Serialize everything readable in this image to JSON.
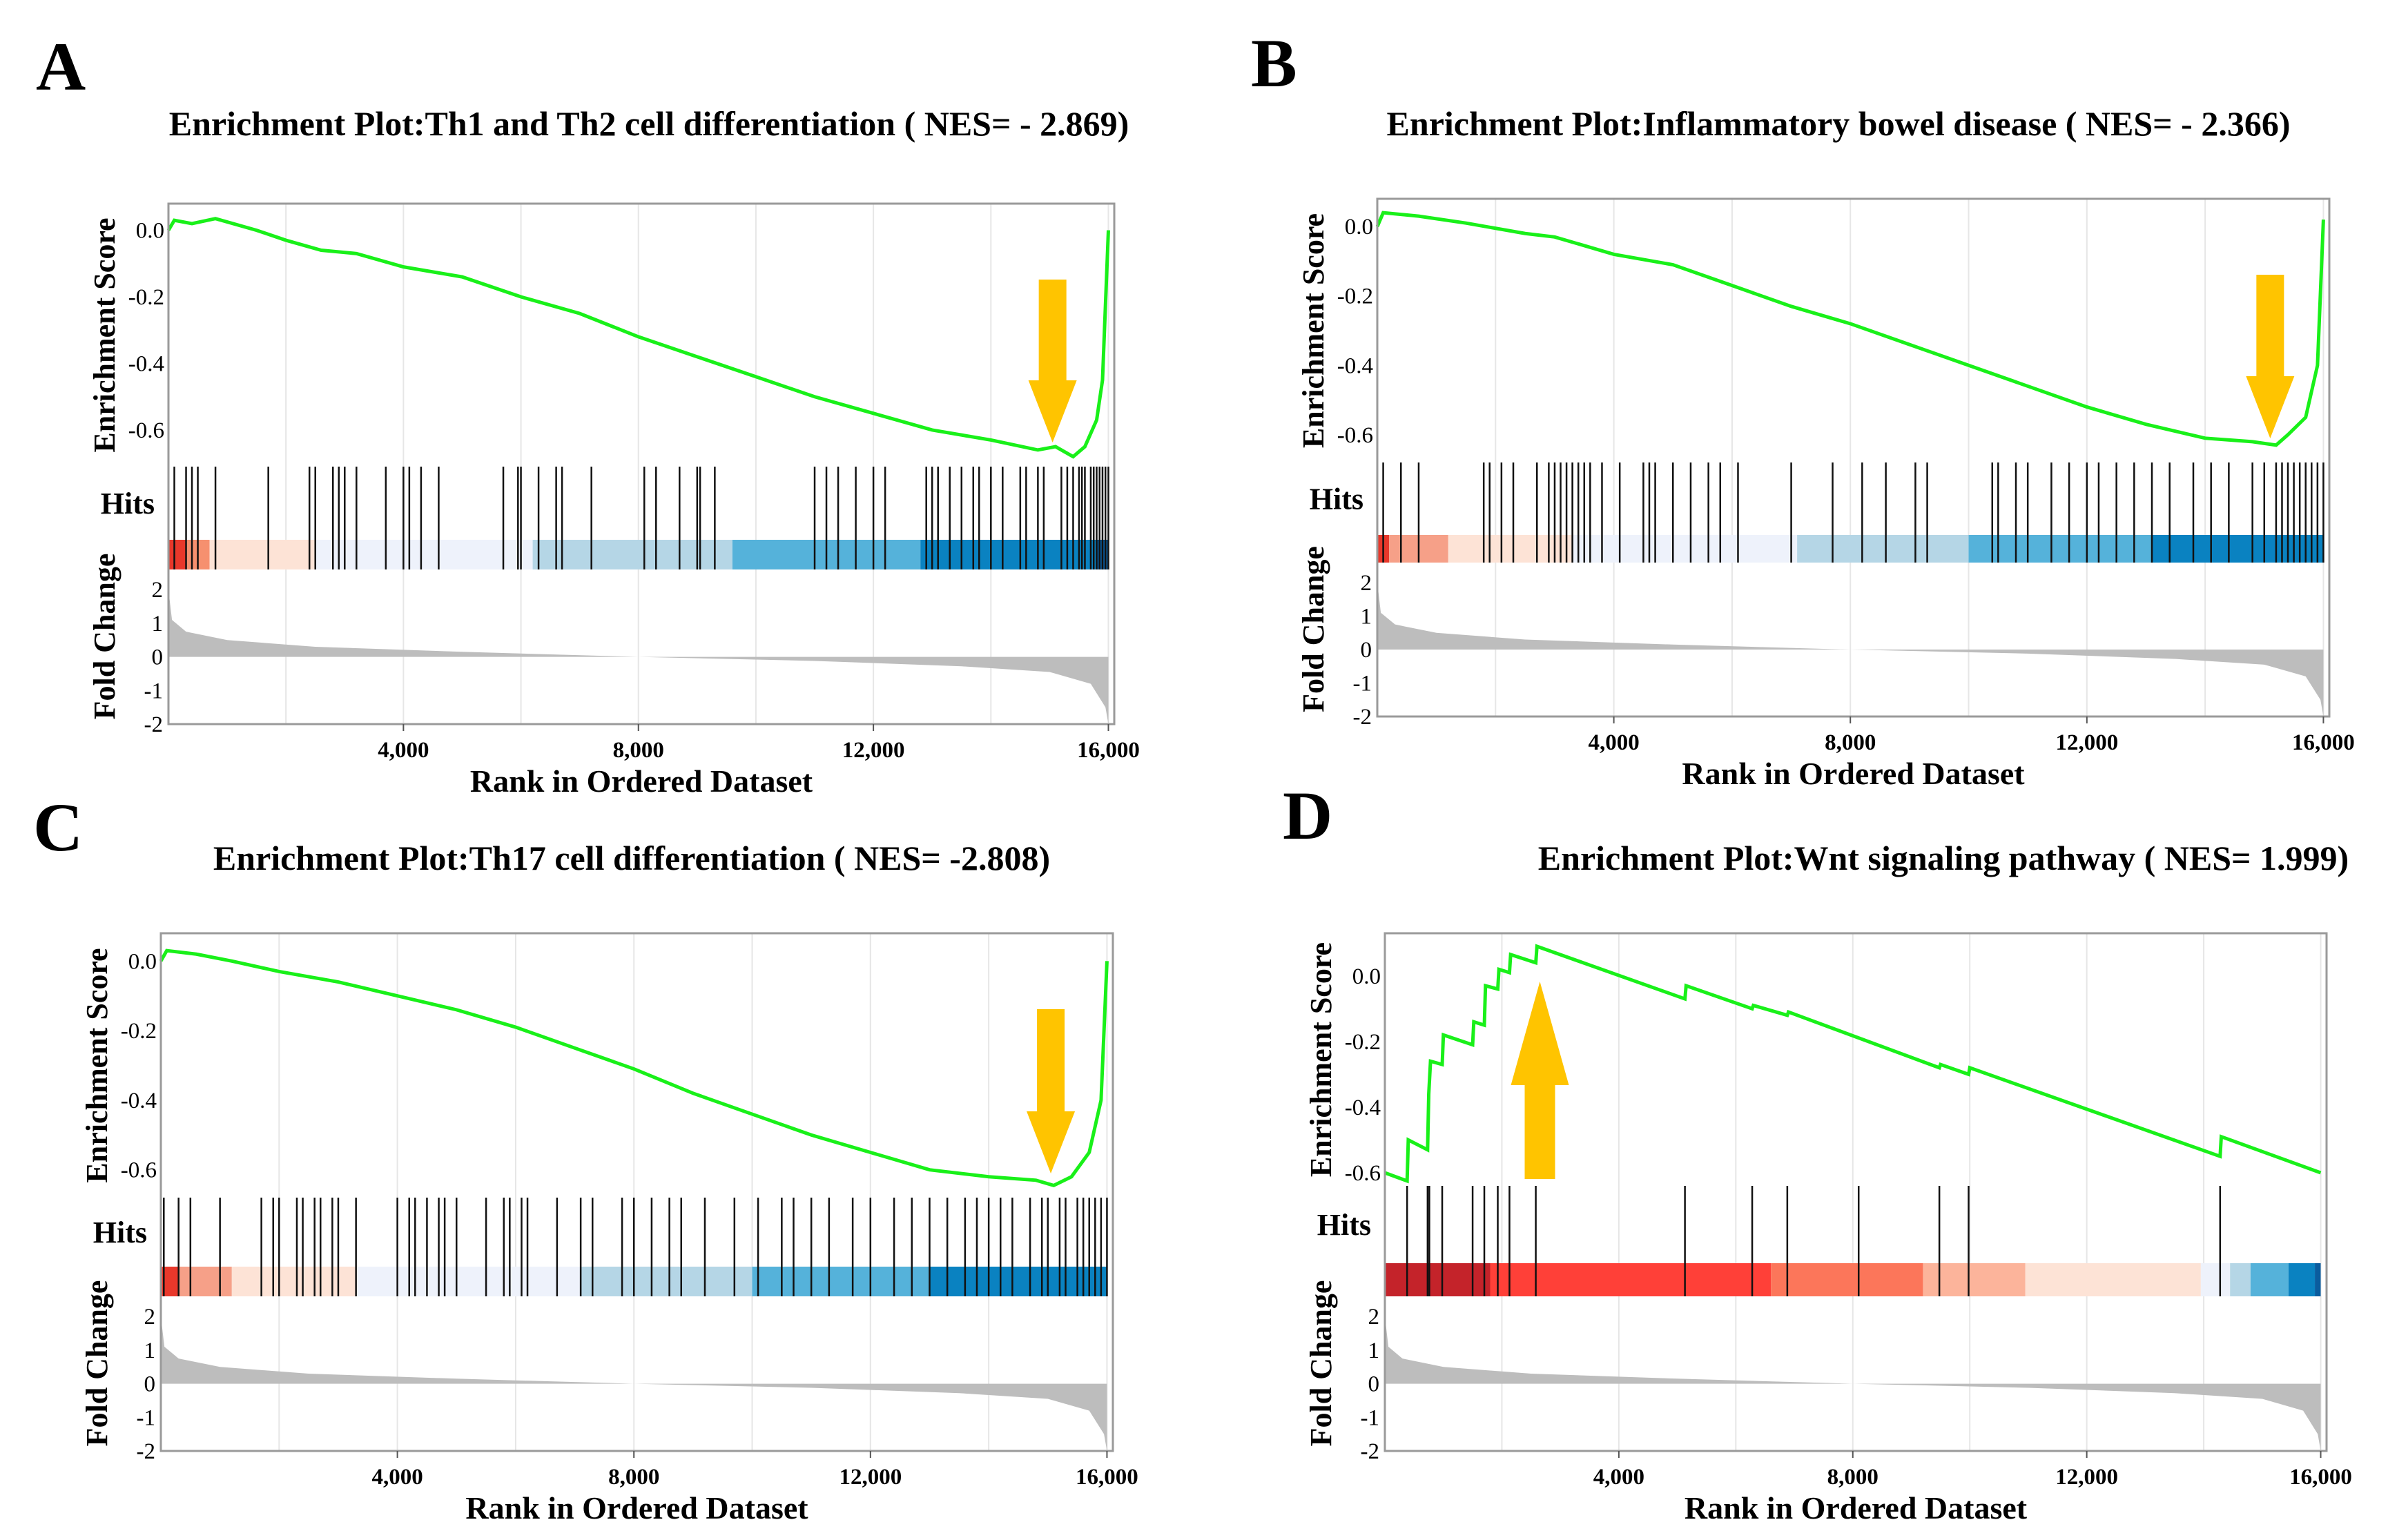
{
  "chart_data": [
    {
      "type": "line",
      "panel_label": "A",
      "title": "Enrichment Plot:Th1 and Th2 cell differentiation ( NES= - 2.869)",
      "xlabel": "Rank in Ordered Dataset",
      "ylabel_es": "Enrichment Score",
      "hits_label": "Hits",
      "ylabel_fc": "Fold Change",
      "xlim": [
        0,
        16100
      ],
      "x_ticks": [
        4000,
        8000,
        12000,
        16000
      ],
      "x_tick_labels": [
        "4,000",
        "8,000",
        "12,000",
        "16,000"
      ],
      "es_ylim": [
        -0.71,
        0.08
      ],
      "es_ticks": [
        0.0,
        -0.2,
        -0.4,
        -0.6
      ],
      "es_tick_labels": [
        "0.0",
        "-0.2",
        "-0.4",
        "-0.6"
      ],
      "fc_ylim": [
        -2,
        2.6
      ],
      "fc_ticks": [
        2,
        1,
        0,
        -1,
        -2
      ],
      "fc_tick_labels": [
        "2",
        "1",
        "0",
        "-1",
        "-2"
      ],
      "es_curve": [
        [
          0,
          0.0
        ],
        [
          100,
          0.03
        ],
        [
          400,
          0.02
        ],
        [
          800,
          0.035
        ],
        [
          1500,
          0.0
        ],
        [
          2000,
          -0.03
        ],
        [
          2600,
          -0.06
        ],
        [
          3200,
          -0.07
        ],
        [
          4000,
          -0.11
        ],
        [
          5000,
          -0.14
        ],
        [
          6000,
          -0.2
        ],
        [
          7000,
          -0.25
        ],
        [
          8000,
          -0.32
        ],
        [
          9000,
          -0.38
        ],
        [
          10000,
          -0.44
        ],
        [
          11000,
          -0.5
        ],
        [
          12000,
          -0.55
        ],
        [
          13000,
          -0.6
        ],
        [
          14000,
          -0.63
        ],
        [
          14800,
          -0.66
        ],
        [
          15100,
          -0.65
        ],
        [
          15400,
          -0.68
        ],
        [
          15600,
          -0.65
        ],
        [
          15800,
          -0.57
        ],
        [
          15900,
          -0.45
        ],
        [
          16000,
          0.0
        ]
      ],
      "hits": [
        100,
        300,
        400,
        500,
        800,
        1700,
        2400,
        2500,
        2800,
        2900,
        3000,
        3200,
        3700,
        4000,
        4100,
        4300,
        4600,
        5700,
        5950,
        6000,
        6300,
        6600,
        6700,
        7200,
        8100,
        8300,
        8700,
        9000,
        9050,
        9300,
        11000,
        11200,
        11400,
        11700,
        12000,
        12200,
        12900,
        13000,
        13100,
        13300,
        13500,
        13700,
        13800,
        14000,
        14200,
        14500,
        14600,
        14800,
        14900,
        15200,
        15300,
        15400,
        15500,
        15550,
        15600,
        15700,
        15750,
        15800,
        15850,
        15900,
        15950,
        16000
      ],
      "heatmap_segments": [
        [
          300,
          "#e8382b"
        ],
        [
          700,
          "#f6906f"
        ],
        [
          2500,
          "#fde3d6"
        ],
        [
          6200,
          "#eef2fb"
        ],
        [
          9600,
          "#b5d6e6"
        ],
        [
          12800,
          "#55b2da"
        ],
        [
          15800,
          "#0a82c1"
        ],
        [
          16000,
          "#0a5c9e"
        ]
      ],
      "fold_change": [
        [
          0,
          2.0
        ],
        [
          60,
          1.1
        ],
        [
          300,
          0.75
        ],
        [
          1000,
          0.5
        ],
        [
          2500,
          0.3
        ],
        [
          5000,
          0.15
        ],
        [
          8000,
          0.0
        ],
        [
          11000,
          -0.12
        ],
        [
          13500,
          -0.28
        ],
        [
          15000,
          -0.45
        ],
        [
          15700,
          -0.8
        ],
        [
          15950,
          -1.5
        ],
        [
          16000,
          -2.0
        ]
      ],
      "arrow": {
        "rank": 15050,
        "direction": "down",
        "color": "#ffc400"
      }
    },
    {
      "type": "line",
      "panel_label": "B",
      "title": "Enrichment Plot:Inflammatory bowel disease ( NES= - 2.366)",
      "xlabel": "Rank in Ordered Dataset",
      "ylabel_es": "Enrichment Score",
      "hits_label": "Hits",
      "ylabel_fc": "Fold Change",
      "xlim": [
        0,
        16100
      ],
      "x_ticks": [
        4000,
        8000,
        12000,
        16000
      ],
      "x_tick_labels": [
        "4,000",
        "8,000",
        "12,000",
        "16,000"
      ],
      "es_ylim": [
        -0.68,
        0.08
      ],
      "es_ticks": [
        0.0,
        -0.2,
        -0.4,
        -0.6
      ],
      "es_tick_labels": [
        "0.0",
        "-0.2",
        "-0.4",
        "-0.6"
      ],
      "fc_ylim": [
        -2,
        2.6
      ],
      "fc_ticks": [
        2,
        1,
        0,
        -1,
        -2
      ],
      "fc_tick_labels": [
        "2",
        "1",
        "0",
        "-1",
        "-2"
      ],
      "es_curve": [
        [
          0,
          0.0
        ],
        [
          100,
          0.04
        ],
        [
          700,
          0.03
        ],
        [
          1500,
          0.01
        ],
        [
          2500,
          -0.02
        ],
        [
          3000,
          -0.03
        ],
        [
          4000,
          -0.08
        ],
        [
          5000,
          -0.11
        ],
        [
          6000,
          -0.17
        ],
        [
          7000,
          -0.23
        ],
        [
          8000,
          -0.28
        ],
        [
          9000,
          -0.34
        ],
        [
          10000,
          -0.4
        ],
        [
          11000,
          -0.46
        ],
        [
          12000,
          -0.52
        ],
        [
          13000,
          -0.57
        ],
        [
          14000,
          -0.61
        ],
        [
          14800,
          -0.62
        ],
        [
          15200,
          -0.63
        ],
        [
          15400,
          -0.6
        ],
        [
          15700,
          -0.55
        ],
        [
          15900,
          -0.4
        ],
        [
          16000,
          0.02
        ]
      ],
      "hits": [
        100,
        400,
        700,
        1800,
        1900,
        2100,
        2300,
        2700,
        2900,
        3000,
        3100,
        3200,
        3300,
        3300,
        3400,
        3500,
        3600,
        3800,
        4100,
        4500,
        4600,
        4700,
        5000,
        5300,
        5600,
        5800,
        6100,
        7000,
        7700,
        8200,
        8600,
        9100,
        9300,
        10400,
        10500,
        10800,
        11000,
        11400,
        11700,
        12000,
        12200,
        12500,
        12800,
        13100,
        13400,
        13800,
        14100,
        14400,
        14800,
        15000,
        15200,
        15300,
        15400,
        15500,
        15600,
        15700,
        15800,
        15900,
        16000
      ],
      "heatmap_segments": [
        [
          200,
          "#e8382b"
        ],
        [
          1200,
          "#f6a088"
        ],
        [
          3300,
          "#fde3d6"
        ],
        [
          7100,
          "#eef2fb"
        ],
        [
          10000,
          "#b5d6e6"
        ],
        [
          13100,
          "#55b2da"
        ],
        [
          16000,
          "#0a82c1"
        ]
      ],
      "fold_change": [
        [
          0,
          2.0
        ],
        [
          60,
          1.1
        ],
        [
          300,
          0.75
        ],
        [
          1000,
          0.5
        ],
        [
          2500,
          0.3
        ],
        [
          5000,
          0.15
        ],
        [
          8000,
          0.0
        ],
        [
          11000,
          -0.12
        ],
        [
          13500,
          -0.28
        ],
        [
          15000,
          -0.45
        ],
        [
          15700,
          -0.8
        ],
        [
          15950,
          -1.5
        ],
        [
          16000,
          -2.0
        ]
      ],
      "arrow": {
        "rank": 15100,
        "direction": "down",
        "color": "#ffc400"
      }
    },
    {
      "type": "line",
      "panel_label": "C",
      "title": "Enrichment Plot:Th17 cell differentiation ( NES= -2.808)",
      "xlabel": "Rank in Ordered Dataset",
      "ylabel_es": "Enrichment Score",
      "hits_label": "Hits",
      "ylabel_fc": "Fold Change",
      "xlim": [
        0,
        16100
      ],
      "x_ticks": [
        4000,
        8000,
        12000,
        16000
      ],
      "x_tick_labels": [
        "4,000",
        "8,000",
        "12,000",
        "16,000"
      ],
      "es_ylim": [
        -0.68,
        0.08
      ],
      "es_ticks": [
        0.0,
        -0.2,
        -0.4,
        -0.6
      ],
      "es_tick_labels": [
        "0.0",
        "-0.2",
        "-0.4",
        "-0.6"
      ],
      "fc_ylim": [
        -2,
        2.6
      ],
      "fc_ticks": [
        2,
        1,
        0,
        -1,
        -2
      ],
      "fc_tick_labels": [
        "2",
        "1",
        "0",
        "-1",
        "-2"
      ],
      "es_curve": [
        [
          0,
          0.0
        ],
        [
          100,
          0.03
        ],
        [
          600,
          0.02
        ],
        [
          1200,
          0.0
        ],
        [
          2000,
          -0.03
        ],
        [
          3000,
          -0.06
        ],
        [
          4000,
          -0.1
        ],
        [
          5000,
          -0.14
        ],
        [
          6000,
          -0.19
        ],
        [
          7000,
          -0.25
        ],
        [
          8000,
          -0.31
        ],
        [
          9000,
          -0.38
        ],
        [
          10000,
          -0.44
        ],
        [
          11000,
          -0.5
        ],
        [
          12000,
          -0.55
        ],
        [
          13000,
          -0.6
        ],
        [
          14000,
          -0.62
        ],
        [
          14800,
          -0.63
        ],
        [
          15100,
          -0.645
        ],
        [
          15400,
          -0.62
        ],
        [
          15700,
          -0.55
        ],
        [
          15900,
          -0.4
        ],
        [
          16000,
          0.0
        ]
      ],
      "hits": [
        50,
        300,
        500,
        1000,
        1700,
        1900,
        2000,
        2300,
        2400,
        2600,
        2700,
        2900,
        3000,
        3300,
        4000,
        4200,
        4300,
        4500,
        4700,
        4800,
        5000,
        5500,
        5800,
        5900,
        6100,
        6200,
        6700,
        7100,
        7300,
        7800,
        8000,
        8300,
        8600,
        8800,
        9200,
        9700,
        10100,
        10500,
        10700,
        11000,
        11300,
        11700,
        12000,
        12400,
        12700,
        13000,
        13300,
        13600,
        13800,
        14000,
        14200,
        14400,
        14700,
        14900,
        15000,
        15200,
        15300,
        15500,
        15600,
        15700,
        15800,
        15900,
        16000
      ],
      "heatmap_segments": [
        [
          300,
          "#e8382b"
        ],
        [
          1200,
          "#f6a088"
        ],
        [
          3300,
          "#fde3d6"
        ],
        [
          7100,
          "#eef2fb"
        ],
        [
          10000,
          "#b5d6e6"
        ],
        [
          13000,
          "#55b2da"
        ],
        [
          16000,
          "#0a82c1"
        ]
      ],
      "fold_change": [
        [
          0,
          2.0
        ],
        [
          60,
          1.1
        ],
        [
          300,
          0.75
        ],
        [
          1000,
          0.5
        ],
        [
          2500,
          0.3
        ],
        [
          5000,
          0.15
        ],
        [
          8000,
          0.0
        ],
        [
          11000,
          -0.12
        ],
        [
          13500,
          -0.28
        ],
        [
          15000,
          -0.45
        ],
        [
          15700,
          -0.8
        ],
        [
          15950,
          -1.5
        ],
        [
          16000,
          -2.0
        ]
      ],
      "arrow": {
        "rank": 15050,
        "direction": "down",
        "color": "#ffc400"
      }
    },
    {
      "type": "line",
      "panel_label": "D",
      "title": "Enrichment Plot:Wnt signaling pathway ( NES= 1.999)",
      "xlabel": "Rank in Ordered Dataset",
      "ylabel_es": "Enrichment Score",
      "hits_label": "Hits",
      "ylabel_fc": "Fold Change",
      "xlim": [
        0,
        16100
      ],
      "x_ticks": [
        4000,
        8000,
        12000,
        16000
      ],
      "x_tick_labels": [
        "4,000",
        "8,000",
        "12,000",
        "16,000"
      ],
      "es_ylim": [
        -0.64,
        0.13
      ],
      "es_ticks": [
        0.0,
        -0.2,
        -0.4,
        -0.6
      ],
      "es_tick_labels": [
        "0.0",
        "-0.2",
        "-0.4",
        "-0.6"
      ],
      "fc_ylim": [
        -2,
        2.6
      ],
      "fc_ticks": [
        2,
        1,
        0,
        -1,
        -2
      ],
      "fc_tick_labels": [
        "2",
        "1",
        "0",
        "-1",
        "-2"
      ],
      "es_curve": [
        [
          0,
          -0.6
        ],
        [
          380,
          -0.625
        ],
        [
          400,
          -0.5
        ],
        [
          730,
          -0.53
        ],
        [
          750,
          -0.36
        ],
        [
          780,
          -0.26
        ],
        [
          980,
          -0.27
        ],
        [
          1000,
          -0.18
        ],
        [
          1500,
          -0.21
        ],
        [
          1520,
          -0.14
        ],
        [
          1700,
          -0.15
        ],
        [
          1720,
          -0.03
        ],
        [
          1930,
          -0.04
        ],
        [
          1950,
          0.02
        ],
        [
          2130,
          0.01
        ],
        [
          2150,
          0.065
        ],
        [
          2580,
          0.04
        ],
        [
          2600,
          0.09
        ],
        [
          5130,
          -0.07
        ],
        [
          5150,
          -0.03
        ],
        [
          6280,
          -0.1
        ],
        [
          6300,
          -0.09
        ],
        [
          6880,
          -0.12
        ],
        [
          6900,
          -0.11
        ],
        [
          9480,
          -0.28
        ],
        [
          9500,
          -0.27
        ],
        [
          9980,
          -0.3
        ],
        [
          10000,
          -0.28
        ],
        [
          14280,
          -0.55
        ],
        [
          14300,
          -0.49
        ],
        [
          16000,
          -0.6
        ]
      ],
      "hits": [
        380,
        730,
        760,
        980,
        1500,
        1700,
        1930,
        2130,
        2580,
        5130,
        6280,
        6880,
        8100,
        9480,
        9980,
        14280
      ],
      "heatmap_segments": [
        [
          1800,
          "#c4232a"
        ],
        [
          6600,
          "#ff4038"
        ],
        [
          9200,
          "#fc765a"
        ],
        [
          10950,
          "#fcb49b"
        ],
        [
          13950,
          "#fde3d6"
        ],
        [
          14450,
          "#eef2fb"
        ],
        [
          14800,
          "#b5d6e6"
        ],
        [
          15450,
          "#55b2da"
        ],
        [
          15900,
          "#0a82c1"
        ],
        [
          16100,
          "#0a5c9e"
        ]
      ],
      "fold_change": [
        [
          0,
          2.0
        ],
        [
          60,
          1.1
        ],
        [
          300,
          0.75
        ],
        [
          1000,
          0.5
        ],
        [
          2500,
          0.3
        ],
        [
          5000,
          0.15
        ],
        [
          8000,
          0.0
        ],
        [
          11000,
          -0.12
        ],
        [
          13500,
          -0.28
        ],
        [
          15000,
          -0.45
        ],
        [
          15700,
          -0.8
        ],
        [
          15950,
          -1.5
        ],
        [
          16000,
          -2.0
        ]
      ],
      "arrow": {
        "rank": 2650,
        "direction": "up",
        "color": "#ffc400"
      }
    }
  ]
}
